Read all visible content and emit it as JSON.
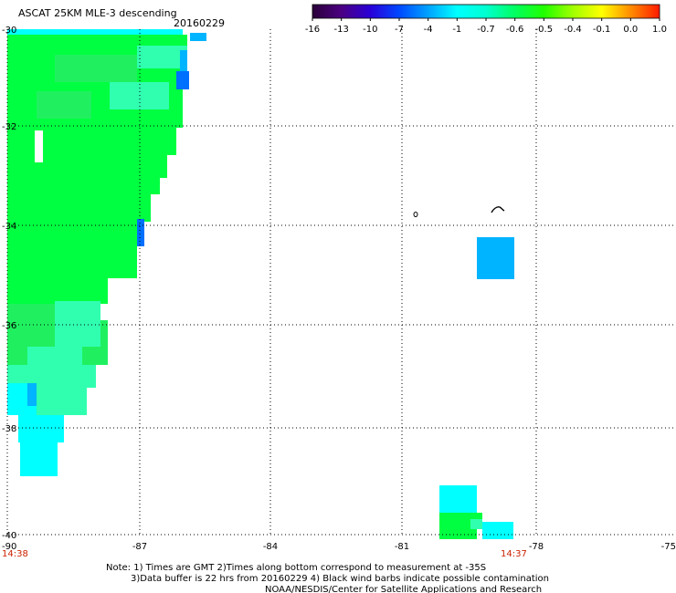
{
  "title": "ASCAT 25KM MLE-3 descending",
  "date": "20160229",
  "colorbar": {
    "labels": [
      "-16",
      "-13",
      "-10",
      "-7",
      "-4",
      "-1",
      "-0.7",
      "-0.6",
      "-0.5",
      "-0.4",
      "-0.1",
      "0.0",
      "1.0"
    ],
    "colors": [
      "#2a0038",
      "#4b0082",
      "#2a00d8",
      "#0048ff",
      "#00a2ff",
      "#00ffff",
      "#00ffd0",
      "#00ff60",
      "#20ff00",
      "#a0ff00",
      "#ffff00",
      "#ff8c00",
      "#ff1a00"
    ]
  },
  "map": {
    "x_ticks": [
      "-90",
      "-87",
      "-84",
      "-81",
      "-78",
      "-75"
    ],
    "y_ticks": [
      "-30",
      "-32",
      "-34",
      "-36",
      "-38",
      "-40"
    ],
    "time_left": "14:38",
    "time_right": "14:37",
    "swath_colors": {
      "green": "#00ff40",
      "mid_green": "#20f060",
      "aqua": "#30ffb0",
      "cyan": "#00ffff",
      "blue": "#00b4ff",
      "dark_blue": "#0070ff"
    }
  },
  "notes": {
    "line1": "Note: 1) Times are GMT 2)Times along bottom correspond to measurement at -35S",
    "line2": "3)Data buffer is 22 hrs from 20160229 4) Black wind barbs indicate possible contamination",
    "line3": "NOAA/NESDIS/Center for Satellite Applications and Research"
  }
}
